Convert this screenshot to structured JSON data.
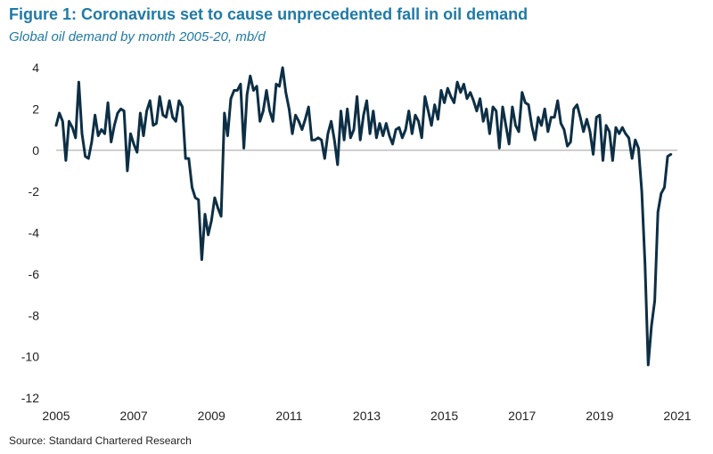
{
  "header": {
    "title": "Figure 1: Coronavirus set to cause unprecedented fall in oil demand",
    "subtitle": "Global oil demand by month 2005-20, mb/d"
  },
  "footer": {
    "source": "Source: Standard Chartered Research"
  },
  "colors": {
    "title": "#1f7aa6",
    "line": "#0d2f45",
    "zero_line": "#bfbfbf"
  },
  "chart_data": {
    "type": "line",
    "title": "Figure 1: Coronavirus set to cause unprecedented fall in oil demand",
    "subtitle": "Global oil demand by month 2005-20, mb/d",
    "xlabel": "",
    "ylabel": "",
    "xlim": [
      2005,
      2021
    ],
    "ylim": [
      -12,
      4
    ],
    "x_ticks": [
      "2005",
      "2007",
      "2009",
      "2011",
      "2013",
      "2015",
      "2017",
      "2019",
      "2021"
    ],
    "y_ticks": [
      "4",
      "2",
      "0",
      "-2",
      "-4",
      "-6",
      "-8",
      "-10",
      "-12"
    ],
    "grid": false,
    "zero_line": true,
    "series": [
      {
        "start": "2005-01",
        "frequency": "monthly",
        "values": [
          1.2,
          1.8,
          1.4,
          -0.5,
          1.4,
          1.1,
          0.6,
          3.3,
          0.8,
          -0.3,
          -0.4,
          0.4,
          1.7,
          0.7,
          1.0,
          0.8,
          2.3,
          0.4,
          1.2,
          1.8,
          2.0,
          1.9,
          -1.0,
          0.8,
          0.3,
          -0.1,
          1.8,
          0.7,
          1.9,
          2.4,
          1.2,
          1.3,
          2.6,
          1.7,
          1.6,
          2.4,
          1.6,
          1.4,
          2.4,
          2.1,
          -0.4,
          -0.4,
          -1.8,
          -2.3,
          -2.4,
          -5.3,
          -3.1,
          -4.1,
          -3.4,
          -2.3,
          -2.8,
          -3.2,
          1.8,
          0.7,
          2.5,
          2.9,
          2.9,
          3.2,
          0.1,
          2.7,
          3.6,
          2.9,
          3.1,
          1.4,
          1.9,
          2.9,
          1.9,
          1.4,
          3.2,
          3.1,
          4.0,
          2.8,
          2.0,
          0.8,
          1.7,
          1.4,
          1.0,
          1.5,
          2.1,
          0.5,
          0.5,
          0.6,
          0.5,
          -0.4,
          0.8,
          1.4,
          0.5,
          -0.7,
          1.9,
          0.5,
          2.0,
          0.6,
          1.0,
          2.6,
          0.5,
          1.7,
          2.4,
          0.8,
          1.9,
          0.6,
          1.3,
          0.7,
          1.3,
          0.7,
          0.3,
          1.0,
          1.1,
          0.6,
          1.0,
          1.9,
          0.8,
          1.7,
          1.4,
          0.6,
          2.6,
          1.9,
          1.2,
          2.2,
          1.5,
          2.9,
          2.3,
          3.0,
          2.6,
          2.3,
          3.3,
          2.8,
          3.2,
          2.5,
          2.8,
          2.4,
          1.9,
          2.5,
          1.4,
          2.0,
          0.8,
          2.1,
          1.9,
          0.1,
          2.1,
          1.2,
          0.3,
          2.1,
          1.2,
          0.9,
          2.8,
          2.3,
          2.2,
          1.2,
          0.5,
          1.6,
          1.2,
          2.0,
          0.9,
          1.6,
          1.6,
          2.4,
          1.3,
          1.0,
          0.2,
          0.4,
          2.0,
          2.2,
          1.6,
          0.9,
          1.5,
          0.9,
          -0.2,
          1.6,
          1.7,
          -0.5,
          1.2,
          0.9,
          -0.5,
          1.1,
          0.8,
          1.1,
          0.8,
          0.6,
          -0.4,
          0.5,
          0.1,
          -2.0,
          -5.5,
          -10.4,
          -8.5,
          -7.3,
          -3.0,
          -2.1,
          -1.8,
          -0.3,
          -0.2
        ]
      }
    ]
  }
}
